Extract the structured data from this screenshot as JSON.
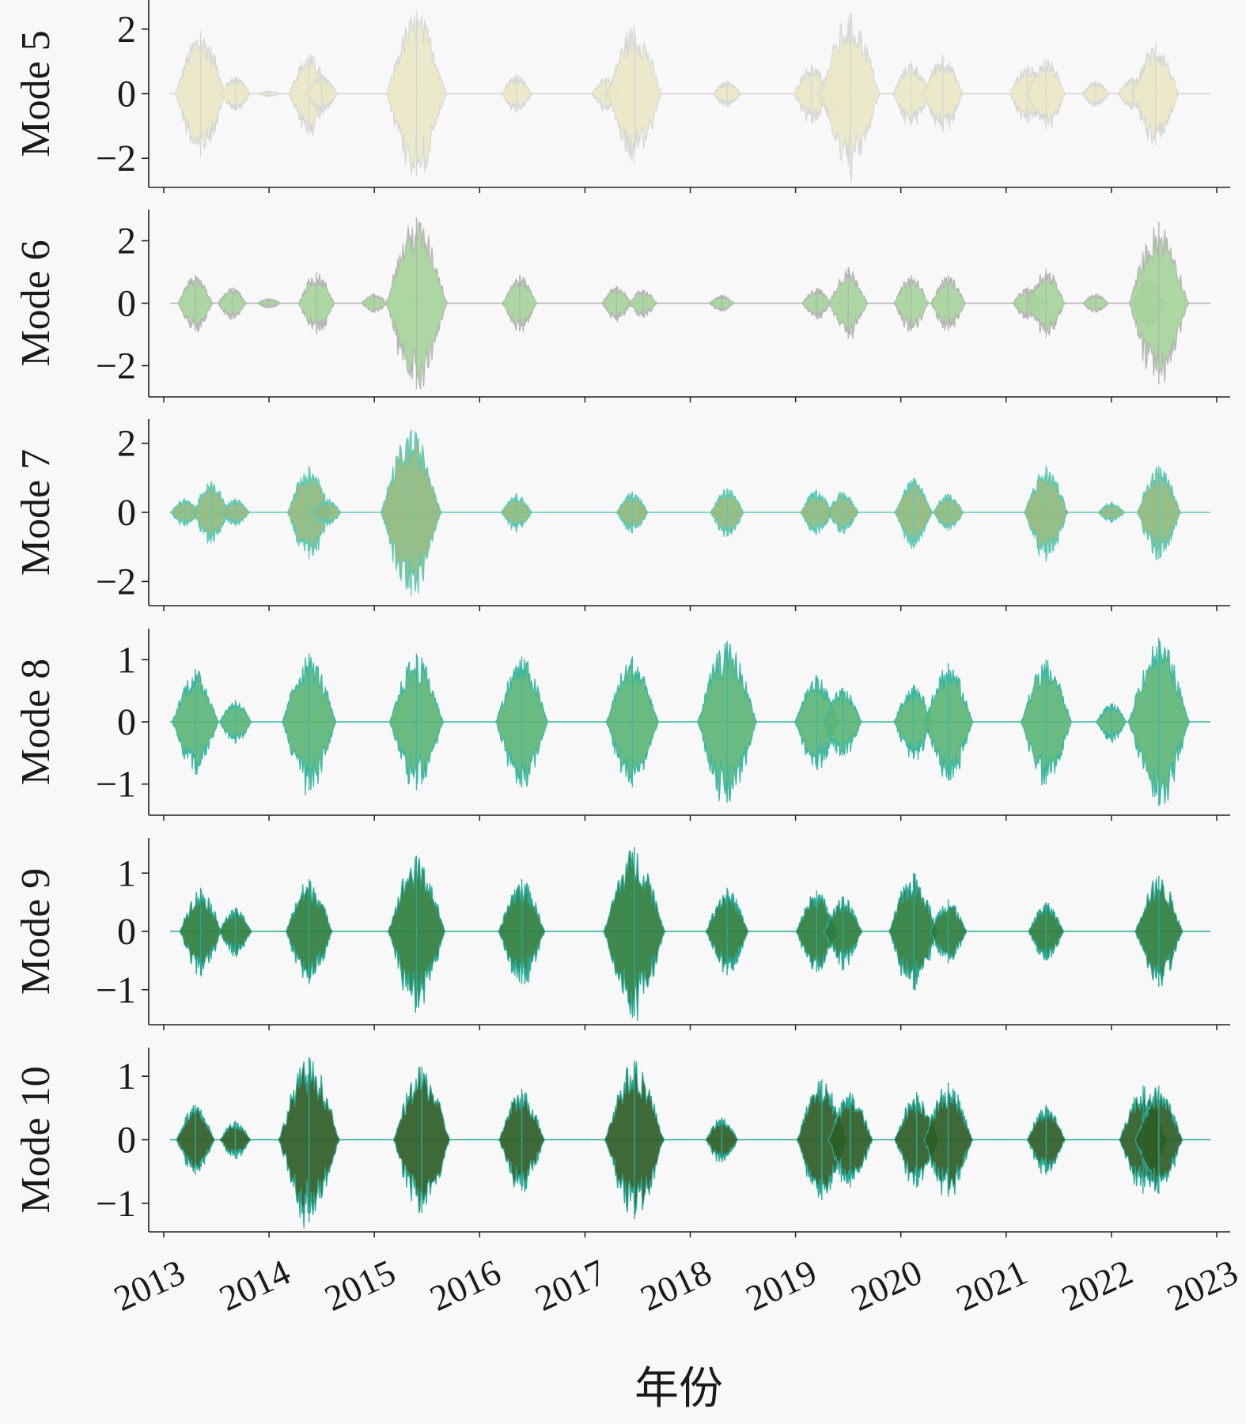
{
  "chart_data": {
    "type": "line",
    "xlabel": "年份",
    "x_ticks": [
      "2013",
      "2014",
      "2015",
      "2016",
      "2017",
      "2018",
      "2019",
      "2020",
      "2021",
      "2022",
      "2023"
    ],
    "x_range": [
      2012.85,
      2023.15
    ],
    "panels": [
      {
        "name": "Mode 5",
        "ylabel": "Mode 5",
        "ylim": [
          -2.9,
          2.9
        ],
        "yticks": [
          2,
          0,
          -2
        ],
        "ytick_labels": [
          "2",
          "0",
          "−2"
        ],
        "color": "#e9e7c4",
        "edge_color": "#d6d6d6",
        "envelope": [
          {
            "t": 2013.35,
            "a": 1.95
          },
          {
            "t": 2013.68,
            "a": 0.55
          },
          {
            "t": 2014.0,
            "a": 0.08
          },
          {
            "t": 2014.38,
            "a": 1.25
          },
          {
            "t": 2014.5,
            "a": 0.6
          },
          {
            "t": 2015.4,
            "a": 2.55
          },
          {
            "t": 2016.35,
            "a": 0.6
          },
          {
            "t": 2017.2,
            "a": 0.5
          },
          {
            "t": 2017.47,
            "a": 2.15
          },
          {
            "t": 2018.35,
            "a": 0.4
          },
          {
            "t": 2019.15,
            "a": 0.9
          },
          {
            "t": 2019.35,
            "a": 0.7
          },
          {
            "t": 2019.52,
            "a": 2.5
          },
          {
            "t": 2020.1,
            "a": 1.0
          },
          {
            "t": 2020.4,
            "a": 1.2
          },
          {
            "t": 2021.2,
            "a": 0.9
          },
          {
            "t": 2021.38,
            "a": 1.1
          },
          {
            "t": 2021.85,
            "a": 0.4
          },
          {
            "t": 2022.2,
            "a": 0.5
          },
          {
            "t": 2022.42,
            "a": 1.6
          }
        ]
      },
      {
        "name": "Mode 6",
        "ylabel": "Mode 6",
        "ylim": [
          -3.0,
          3.0
        ],
        "yticks": [
          2,
          0,
          -2
        ],
        "ytick_labels": [
          "2",
          "0",
          "−2"
        ],
        "color": "#a5d49a",
        "edge_color": "#b4b4b4",
        "envelope": [
          {
            "t": 2013.3,
            "a": 0.9
          },
          {
            "t": 2013.65,
            "a": 0.5
          },
          {
            "t": 2014.0,
            "a": 0.15
          },
          {
            "t": 2014.45,
            "a": 1.0
          },
          {
            "t": 2015.0,
            "a": 0.3
          },
          {
            "t": 2015.4,
            "a": 2.75
          },
          {
            "t": 2016.38,
            "a": 0.9
          },
          {
            "t": 2017.3,
            "a": 0.55
          },
          {
            "t": 2017.55,
            "a": 0.45
          },
          {
            "t": 2018.3,
            "a": 0.25
          },
          {
            "t": 2019.2,
            "a": 0.5
          },
          {
            "t": 2019.5,
            "a": 1.15
          },
          {
            "t": 2020.1,
            "a": 0.9
          },
          {
            "t": 2020.45,
            "a": 0.9
          },
          {
            "t": 2021.2,
            "a": 0.5
          },
          {
            "t": 2021.38,
            "a": 1.1
          },
          {
            "t": 2021.85,
            "a": 0.3
          },
          {
            "t": 2022.35,
            "a": 0.8
          },
          {
            "t": 2022.45,
            "a": 2.6
          }
        ]
      },
      {
        "name": "Mode 7",
        "ylabel": "Mode 7",
        "ylim": [
          -2.7,
          2.7
        ],
        "yticks": [
          2,
          0,
          -2
        ],
        "ytick_labels": [
          "2",
          "0",
          "−2"
        ],
        "color": "#8fb97e",
        "edge_color": "#5cc9b8",
        "envelope": [
          {
            "t": 2013.2,
            "a": 0.4
          },
          {
            "t": 2013.45,
            "a": 0.9
          },
          {
            "t": 2013.68,
            "a": 0.4
          },
          {
            "t": 2014.38,
            "a": 1.35
          },
          {
            "t": 2014.55,
            "a": 0.4
          },
          {
            "t": 2015.35,
            "a": 2.4
          },
          {
            "t": 2016.35,
            "a": 0.55
          },
          {
            "t": 2017.45,
            "a": 0.6
          },
          {
            "t": 2018.35,
            "a": 0.7
          },
          {
            "t": 2019.2,
            "a": 0.65
          },
          {
            "t": 2019.45,
            "a": 0.6
          },
          {
            "t": 2020.12,
            "a": 1.0
          },
          {
            "t": 2020.45,
            "a": 0.55
          },
          {
            "t": 2021.38,
            "a": 1.35
          },
          {
            "t": 2022.0,
            "a": 0.3
          },
          {
            "t": 2022.45,
            "a": 1.35
          }
        ]
      },
      {
        "name": "Mode 8",
        "ylabel": "Mode 8",
        "ylim": [
          -1.5,
          1.5
        ],
        "yticks": [
          1,
          0,
          -1
        ],
        "ytick_labels": [
          "1",
          "0",
          "−1"
        ],
        "color": "#5cb576",
        "edge_color": "#3ab7a6",
        "envelope": [
          {
            "t": 2013.3,
            "a": 0.85
          },
          {
            "t": 2013.68,
            "a": 0.35
          },
          {
            "t": 2014.38,
            "a": 1.1
          },
          {
            "t": 2015.4,
            "a": 1.1
          },
          {
            "t": 2016.4,
            "a": 1.05
          },
          {
            "t": 2017.45,
            "a": 1.05
          },
          {
            "t": 2018.35,
            "a": 1.3
          },
          {
            "t": 2019.2,
            "a": 0.75
          },
          {
            "t": 2019.45,
            "a": 0.55
          },
          {
            "t": 2020.12,
            "a": 0.6
          },
          {
            "t": 2020.45,
            "a": 0.95
          },
          {
            "t": 2021.38,
            "a": 1.0
          },
          {
            "t": 2022.0,
            "a": 0.3
          },
          {
            "t": 2022.45,
            "a": 1.35
          }
        ]
      },
      {
        "name": "Mode 9",
        "ylabel": "Mode 9",
        "ylim": [
          -1.6,
          1.6
        ],
        "yticks": [
          1,
          0,
          -1
        ],
        "ytick_labels": [
          "1",
          "0",
          "−1"
        ],
        "color": "#2e7d3e",
        "edge_color": "#2aa999",
        "envelope": [
          {
            "t": 2013.35,
            "a": 0.75
          },
          {
            "t": 2013.68,
            "a": 0.4
          },
          {
            "t": 2014.38,
            "a": 0.9
          },
          {
            "t": 2015.4,
            "a": 1.3
          },
          {
            "t": 2016.4,
            "a": 0.9
          },
          {
            "t": 2017.47,
            "a": 1.45
          },
          {
            "t": 2018.35,
            "a": 0.75
          },
          {
            "t": 2019.2,
            "a": 0.7
          },
          {
            "t": 2019.45,
            "a": 0.6
          },
          {
            "t": 2020.12,
            "a": 1.0
          },
          {
            "t": 2020.45,
            "a": 0.55
          },
          {
            "t": 2021.38,
            "a": 0.5
          },
          {
            "t": 2022.45,
            "a": 0.95
          }
        ]
      },
      {
        "name": "Mode 10",
        "ylabel": "Mode 10",
        "ylim": [
          -1.45,
          1.45
        ],
        "yticks": [
          1,
          0,
          -1
        ],
        "ytick_labels": [
          "1",
          "0",
          "−1"
        ],
        "color": "#2f5d26",
        "edge_color": "#2aa999",
        "envelope": [
          {
            "t": 2013.3,
            "a": 0.55
          },
          {
            "t": 2013.68,
            "a": 0.3
          },
          {
            "t": 2014.38,
            "a": 1.3
          },
          {
            "t": 2015.45,
            "a": 1.15
          },
          {
            "t": 2016.4,
            "a": 0.8
          },
          {
            "t": 2017.47,
            "a": 1.25
          },
          {
            "t": 2018.3,
            "a": 0.35
          },
          {
            "t": 2019.25,
            "a": 0.95
          },
          {
            "t": 2019.52,
            "a": 0.75
          },
          {
            "t": 2020.15,
            "a": 0.75
          },
          {
            "t": 2020.45,
            "a": 0.9
          },
          {
            "t": 2021.38,
            "a": 0.55
          },
          {
            "t": 2022.3,
            "a": 0.85
          },
          {
            "t": 2022.45,
            "a": 0.85
          }
        ]
      }
    ]
  }
}
